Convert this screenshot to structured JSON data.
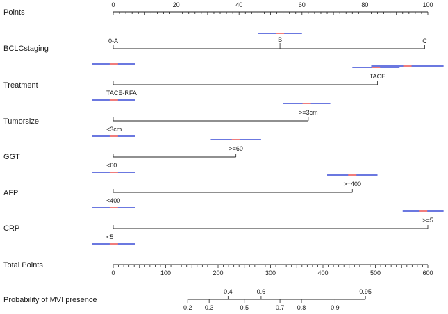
{
  "chart_data": {
    "type": "nomogram",
    "title": "",
    "colors": {
      "axis": "#222222",
      "band": "#6b78e0",
      "band_center": "#f07c7c"
    },
    "points_axis": {
      "label": "Points",
      "range": [
        0,
        100
      ],
      "major_ticks": [
        0,
        20,
        40,
        60,
        80,
        100
      ],
      "tick_labels": [
        "0",
        "20",
        "40",
        "60",
        "80",
        "100"
      ]
    },
    "variables": [
      {
        "name": "BCLCstaging",
        "levels": [
          {
            "label": "0-A",
            "points": 0,
            "band": [
              -7,
              7
            ]
          },
          {
            "label": "B",
            "points": 53,
            "band": [
              46,
              60
            ]
          },
          {
            "label": "C",
            "points": 99,
            "band": [
              82,
              105
            ]
          }
        ]
      },
      {
        "name": "Treatment",
        "levels": [
          {
            "label": "TACE-RFA",
            "points": 0,
            "band": [
              -7,
              7
            ]
          },
          {
            "label": "TACE",
            "points": 84,
            "band": [
              76,
              91
            ]
          }
        ]
      },
      {
        "name": "Tumorsize",
        "levels": [
          {
            "label": "<3cm",
            "points": 0,
            "band": [
              -7,
              7
            ]
          },
          {
            "label": ">=3cm",
            "points": 62,
            "band": [
              54,
              69
            ]
          }
        ]
      },
      {
        "name": "GGT",
        "levels": [
          {
            "label": "<60",
            "points": 0,
            "band": [
              -7,
              7
            ]
          },
          {
            "label": ">=60",
            "points": 39,
            "band": [
              31,
              47
            ]
          }
        ]
      },
      {
        "name": "AFP",
        "levels": [
          {
            "label": "<400",
            "points": 0,
            "band": [
              -7,
              7
            ]
          },
          {
            "label": ">=400",
            "points": 76,
            "band": [
              68,
              84
            ]
          }
        ]
      },
      {
        "name": "CRP",
        "levels": [
          {
            "label": "<5",
            "points": 0,
            "band": [
              -7,
              7
            ]
          },
          {
            "label": ">=5",
            "points": 100,
            "band": [
              92,
              105
            ]
          }
        ]
      }
    ],
    "total_points_axis": {
      "label": "Total Points",
      "range": [
        0,
        600
      ],
      "major_ticks": [
        0,
        100,
        200,
        300,
        400,
        500,
        600
      ],
      "tick_labels": [
        "0",
        "100",
        "200",
        "300",
        "400",
        "500",
        "600"
      ]
    },
    "probability_axis": {
      "label": "Probability of MVI presence",
      "ticks": [
        {
          "value": 0.2,
          "total_points": 142
        },
        {
          "value": 0.3,
          "total_points": 183
        },
        {
          "value": 0.4,
          "total_points": 219
        },
        {
          "value": 0.5,
          "total_points": 250
        },
        {
          "value": 0.6,
          "total_points": 282
        },
        {
          "value": 0.7,
          "total_points": 318
        },
        {
          "value": 0.8,
          "total_points": 359
        },
        {
          "value": 0.9,
          "total_points": 423
        },
        {
          "value": 0.95,
          "total_points": 481
        }
      ],
      "labels_above": [
        "0.4",
        "0.6",
        "0.95"
      ]
    }
  }
}
